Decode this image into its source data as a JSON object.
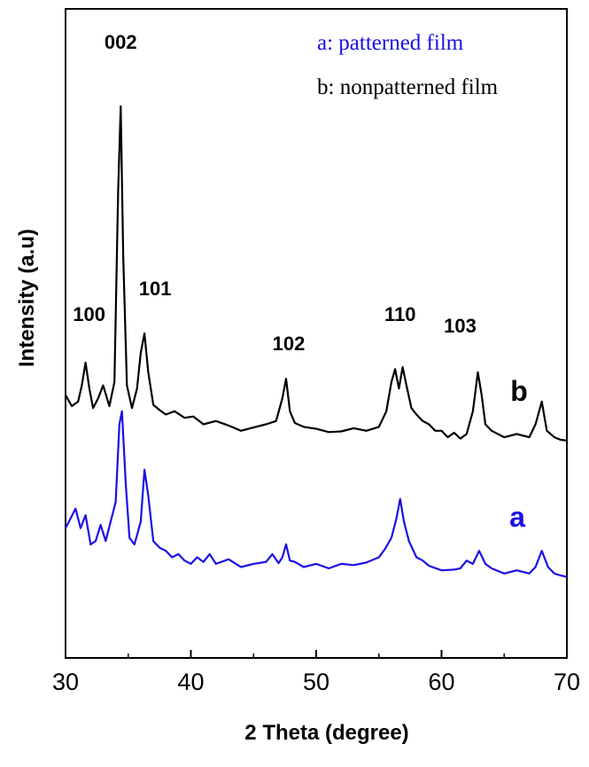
{
  "chart_data": {
    "type": "line",
    "xlabel": "2 Theta (degree)",
    "ylabel": "Intensity (a.u)",
    "xlim": [
      30,
      70
    ],
    "xticks": [
      "30",
      "40",
      "50",
      "60",
      "70"
    ],
    "y_tick_labels_shown": false,
    "ylim": [
      0,
      100
    ],
    "legend": [
      {
        "text": "a: patterned film",
        "color": "#1a10e6"
      },
      {
        "text": "b: nonpatterned film",
        "color": "#000000"
      }
    ],
    "peak_labels": [
      {
        "text": "100",
        "x": 31.6
      },
      {
        "text": "002",
        "x": 34.4
      },
      {
        "text": "101",
        "x": 36.3
      },
      {
        "text": "102",
        "x": 47.6
      },
      {
        "text": "110",
        "x": 56.7
      },
      {
        "text": "103",
        "x": 62.9
      }
    ],
    "series": [
      {
        "name": "b",
        "color": "#000000",
        "x": [
          30.0,
          30.5,
          31.0,
          31.3,
          31.6,
          31.9,
          32.2,
          32.6,
          33.0,
          33.5,
          33.9,
          34.2,
          34.4,
          34.6,
          34.9,
          35.3,
          35.7,
          36.0,
          36.3,
          36.6,
          37.0,
          37.5,
          38.0,
          38.7,
          39.5,
          40.2,
          41.0,
          42.0,
          43.0,
          44.0,
          45.0,
          46.0,
          46.8,
          47.3,
          47.6,
          47.9,
          48.3,
          49.0,
          50.0,
          51.0,
          52.0,
          53.0,
          54.0,
          55.0,
          55.6,
          56.0,
          56.3,
          56.6,
          56.9,
          57.2,
          57.6,
          58.0,
          58.5,
          59.0,
          59.5,
          60.0,
          60.5,
          61.0,
          61.5,
          62.0,
          62.5,
          62.9,
          63.2,
          63.5,
          64.0,
          65.0,
          66.0,
          67.0,
          67.5,
          68.0,
          68.4,
          69.0,
          69.5,
          70.0
        ],
        "values": [
          40.5,
          38.8,
          39.5,
          42.0,
          45.5,
          41.5,
          38.5,
          40.0,
          42.0,
          38.8,
          42.5,
          72.0,
          85.0,
          62.0,
          42.0,
          38.5,
          41.5,
          47.0,
          50.0,
          44.0,
          39.0,
          38.2,
          37.5,
          38.0,
          37.0,
          37.2,
          36.0,
          36.5,
          35.8,
          35.0,
          35.5,
          36.0,
          36.5,
          40.0,
          43.0,
          38.0,
          36.2,
          35.6,
          35.3,
          34.8,
          34.9,
          35.4,
          35.0,
          35.6,
          38.0,
          42.5,
          44.5,
          41.5,
          44.8,
          42.0,
          38.5,
          37.5,
          36.5,
          36.0,
          35.0,
          35.0,
          34.0,
          34.7,
          33.8,
          34.5,
          38.0,
          44.0,
          40.5,
          36.0,
          35.0,
          34.0,
          34.5,
          34.0,
          36.0,
          39.5,
          35.0,
          34.0,
          33.6,
          33.5
        ]
      },
      {
        "name": "a",
        "color": "#1a10e6",
        "x": [
          30.0,
          30.4,
          30.8,
          31.2,
          31.6,
          32.0,
          32.4,
          32.8,
          33.2,
          33.6,
          34.0,
          34.3,
          34.5,
          34.8,
          35.1,
          35.5,
          36.0,
          36.3,
          36.6,
          37.0,
          37.5,
          38.0,
          38.5,
          39.0,
          39.5,
          40.0,
          40.5,
          41.0,
          41.5,
          42.0,
          43.0,
          44.0,
          45.0,
          46.0,
          46.5,
          47.0,
          47.3,
          47.6,
          47.9,
          48.3,
          49.0,
          50.0,
          51.0,
          52.0,
          53.0,
          54.0,
          55.0,
          55.5,
          56.0,
          56.4,
          56.7,
          57.0,
          57.4,
          58.0,
          58.5,
          59.0,
          60.0,
          61.0,
          61.5,
          62.0,
          62.5,
          63.0,
          63.5,
          64.0,
          65.0,
          66.0,
          67.0,
          67.5,
          68.0,
          68.5,
          69.0,
          69.5,
          70.0
        ],
        "values": [
          20.0,
          21.5,
          23.0,
          20.0,
          22.0,
          17.5,
          18.0,
          20.5,
          18.0,
          21.0,
          24.0,
          36.0,
          38.0,
          27.0,
          18.5,
          17.5,
          21.0,
          29.0,
          25.0,
          18.0,
          17.0,
          16.5,
          15.5,
          16.0,
          15.0,
          14.5,
          15.5,
          14.8,
          16.0,
          14.5,
          15.2,
          14.0,
          14.5,
          14.8,
          16.0,
          14.6,
          15.5,
          17.5,
          15.0,
          14.8,
          14.0,
          14.5,
          13.8,
          14.5,
          14.3,
          14.7,
          15.5,
          16.8,
          18.5,
          21.5,
          24.5,
          21.0,
          18.0,
          15.5,
          15.0,
          14.2,
          13.5,
          13.6,
          13.8,
          15.0,
          14.5,
          16.5,
          14.5,
          13.8,
          13.0,
          13.5,
          13.0,
          14.0,
          16.5,
          14.0,
          13.0,
          12.7,
          12.5
        ]
      }
    ],
    "curve_labels": [
      {
        "text": "b",
        "color": "#000000"
      },
      {
        "text": "a",
        "color": "#1a10e6"
      }
    ]
  }
}
